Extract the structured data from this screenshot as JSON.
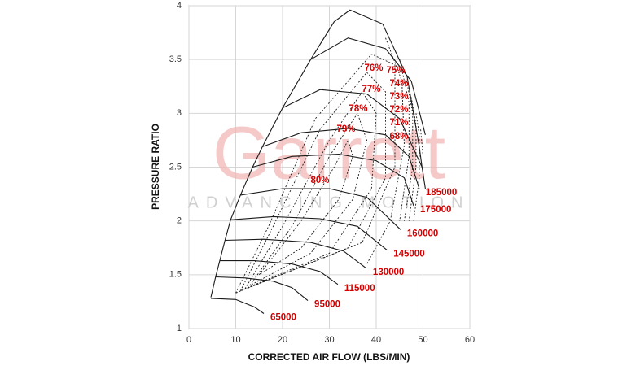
{
  "chart_data": {
    "type": "line",
    "x_label": "CORRECTED AIR FLOW (LBS/MIN)",
    "y_label": "PRESSURE RATIO",
    "watermark": {
      "brand": "Garrett",
      "tagline": "ADVANCING MOTION"
    },
    "xlim": [
      0,
      60
    ],
    "xticks": [
      0,
      10,
      20,
      30,
      40,
      50,
      60
    ],
    "ylim": [
      1,
      4
    ],
    "yticks": [
      1,
      1.5,
      2,
      2.5,
      3,
      3.5,
      4
    ],
    "grid": true,
    "line_color": "#1a1a1a",
    "label_color": "#d40000",
    "series": [
      {
        "name": "65000",
        "x": [
          4.7,
          10,
          14,
          16
        ],
        "values": [
          1.28,
          1.27,
          1.2,
          1.14
        ]
      },
      {
        "name": "95000",
        "x": [
          5.7,
          12,
          18,
          22,
          25.4
        ],
        "values": [
          1.48,
          1.47,
          1.44,
          1.38,
          1.26
        ]
      },
      {
        "name": "115000",
        "x": [
          6.6,
          14,
          22,
          28,
          31.8
        ],
        "values": [
          1.63,
          1.63,
          1.6,
          1.53,
          1.41
        ]
      },
      {
        "name": "130000",
        "x": [
          7.7,
          16,
          26,
          33,
          37.9
        ],
        "values": [
          1.82,
          1.83,
          1.8,
          1.72,
          1.56
        ]
      },
      {
        "name": "145000",
        "x": [
          8.9,
          18,
          28,
          36,
          42.3
        ],
        "values": [
          2.01,
          2.04,
          2.02,
          1.95,
          1.73
        ]
      },
      {
        "name": "160000",
        "x": [
          11,
          20,
          30,
          38,
          45.2
        ],
        "values": [
          2.24,
          2.3,
          2.3,
          2.22,
          1.92
        ]
      },
      {
        "name": "175000",
        "x": [
          13.6,
          22,
          32,
          40,
          46,
          48
        ],
        "values": [
          2.5,
          2.6,
          2.62,
          2.56,
          2.4,
          2.14
        ]
      },
      {
        "name": "185000",
        "x": [
          15.7,
          24,
          34,
          42,
          47,
          49.2
        ],
        "values": [
          2.69,
          2.82,
          2.86,
          2.8,
          2.6,
          2.3
        ]
      },
      {
        "x": [
          20,
          28,
          38,
          45,
          49.8
        ],
        "values": [
          3.05,
          3.22,
          3.18,
          2.95,
          2.5
        ]
      },
      {
        "x": [
          26,
          34,
          42,
          47.5,
          50.5
        ],
        "values": [
          3.5,
          3.7,
          3.6,
          3.3,
          2.8
        ]
      },
      {
        "x": [
          4.7,
          5.7,
          6.6,
          7.7,
          8.9,
          11,
          13.6,
          15.7,
          20,
          26,
          31,
          34.4,
          41.4,
          46.6,
          49.2,
          49.8,
          50.5
        ],
        "values": [
          1.29,
          1.48,
          1.63,
          1.82,
          2.01,
          2.24,
          2.5,
          2.69,
          3.05,
          3.5,
          3.85,
          3.96,
          3.83,
          3.34,
          2.69,
          2.5,
          2.3
        ]
      }
    ],
    "efficiency": [
      {
        "label": "80%",
        "x": [
          15,
          24,
          31,
          34,
          35,
          32,
          24,
          15
        ],
        "values": [
          1.5,
          2.0,
          2.5,
          2.75,
          2.6,
          2.2,
          1.75,
          1.5
        ]
      },
      {
        "label": "79%",
        "x": [
          13,
          22,
          30,
          36,
          38,
          35,
          26,
          13
        ],
        "values": [
          1.4,
          1.95,
          2.6,
          3.0,
          2.75,
          2.2,
          1.7,
          1.4
        ]
      },
      {
        "label": "78%",
        "x": [
          12,
          20,
          30,
          37,
          40,
          39,
          30,
          12
        ],
        "values": [
          1.37,
          1.95,
          2.75,
          3.2,
          3.0,
          2.3,
          1.7,
          1.37
        ]
      },
      {
        "label": "77%",
        "x": [
          11,
          18,
          28,
          38,
          42,
          42,
          34,
          11
        ],
        "values": [
          1.35,
          1.95,
          2.85,
          3.38,
          3.2,
          2.4,
          1.75,
          1.35
        ]
      },
      {
        "label": "76%",
        "x": [
          10,
          17,
          27,
          39,
          44,
          44,
          37,
          10
        ],
        "values": [
          1.33,
          1.95,
          2.95,
          3.55,
          3.45,
          2.5,
          1.8,
          1.33
        ]
      },
      {
        "label": "75%",
        "x": [
          42,
          45.5,
          46,
          43,
          38
        ],
        "values": [
          3.7,
          3.3,
          2.7,
          2.0,
          1.6
        ]
      },
      {
        "label": "74%",
        "x": [
          45,
          47,
          47,
          45
        ],
        "values": [
          3.5,
          3.1,
          2.6,
          2.0
        ]
      },
      {
        "label": "73%",
        "x": [
          46.5,
          47.8,
          47.8,
          46
        ],
        "values": [
          3.3,
          3.0,
          2.5,
          2.0
        ]
      },
      {
        "label": "72%",
        "x": [
          47.5,
          48.5,
          48.5,
          47
        ],
        "values": [
          3.15,
          2.9,
          2.5,
          2.0
        ]
      },
      {
        "label": "71%",
        "x": [
          48.5,
          49.2,
          49.2,
          48
        ],
        "values": [
          3.0,
          2.8,
          2.4,
          2.0
        ]
      },
      {
        "label": "68%",
        "x": [
          49.5,
          50,
          50
        ],
        "values": [
          2.85,
          2.6,
          2.3
        ]
      }
    ]
  }
}
